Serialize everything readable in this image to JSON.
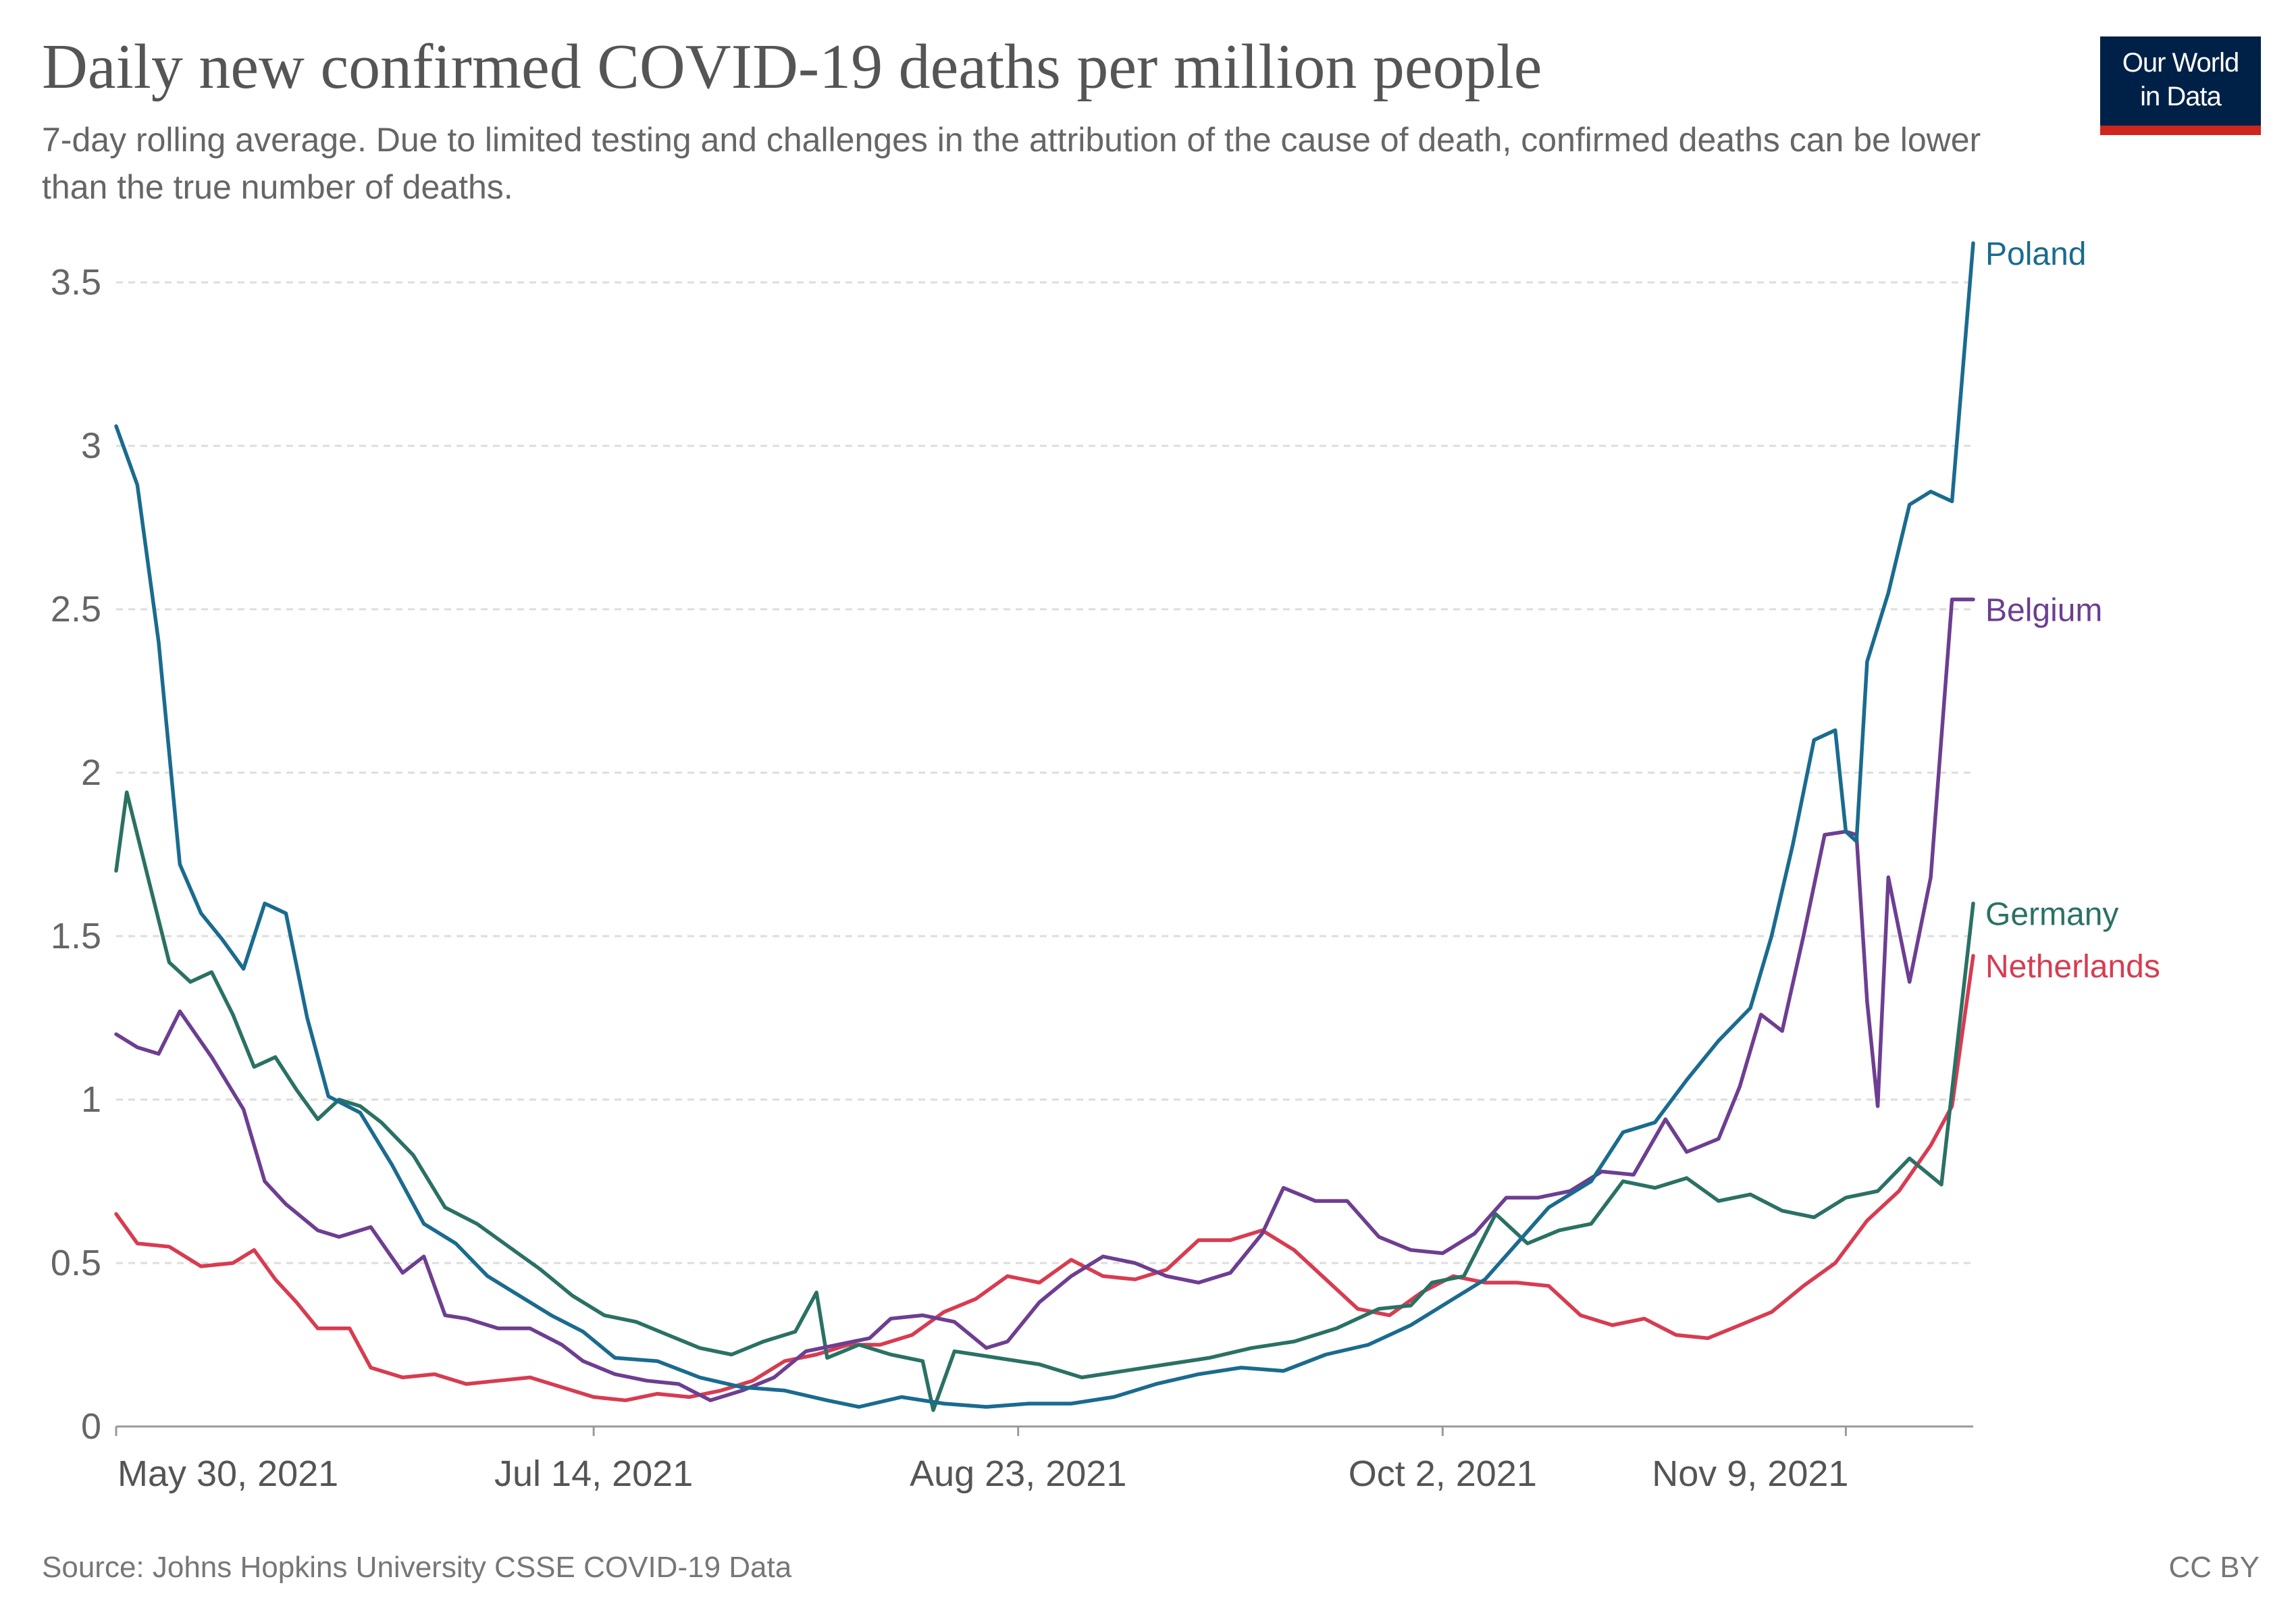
{
  "header": {
    "title": "Daily new confirmed COVID-19 deaths per million people",
    "subtitle": "7-day rolling average. Due to limited testing and challenges in the attribution of the cause of death, confirmed deaths can be lower than the true number of deaths.",
    "logo_line1": "Our World",
    "logo_line2": "in Data"
  },
  "footer": {
    "source": "Source: Johns Hopkins University CSSE COVID-19 Data",
    "license": "CC BY"
  },
  "colors": {
    "Poland": "#1a6b8f",
    "Belgium": "#6d3e91",
    "Germany": "#2a7164",
    "Netherlands": "#d73c50",
    "logo_bg": "#002147",
    "logo_accent": "#ce261e"
  },
  "chart_data": {
    "type": "line",
    "title": "Daily new confirmed COVID-19 deaths per million people",
    "subtitle": "7-day rolling average. Due to limited testing and challenges in the attribution of the cause of death, confirmed deaths can be lower than the true number of deaths.",
    "x_range": [
      "2021-05-30",
      "2021-11-21"
    ],
    "x_ticks": [
      {
        "date": "2021-05-30",
        "label": "May 30, 2021"
      },
      {
        "date": "2021-07-14",
        "label": "Jul 14, 2021"
      },
      {
        "date": "2021-08-23",
        "label": "Aug 23, 2021"
      },
      {
        "date": "2021-10-02",
        "label": "Oct 2, 2021"
      },
      {
        "date": "2021-11-09",
        "label": "Nov 9, 2021"
      }
    ],
    "ylim": [
      0,
      3.5
    ],
    "y_ticks": [
      0,
      0.5,
      1,
      1.5,
      2,
      2.5,
      3,
      3.5
    ],
    "grid": "horizontal dashed",
    "legend": "labels at line ends (right)",
    "series": [
      {
        "name": "Poland",
        "points": [
          [
            "2021-05-30",
            3.06
          ],
          [
            "2021-06-01",
            2.88
          ],
          [
            "2021-06-03",
            2.4
          ],
          [
            "2021-06-05",
            1.72
          ],
          [
            "2021-06-07",
            1.57
          ],
          [
            "2021-06-09",
            1.49
          ],
          [
            "2021-06-11",
            1.4
          ],
          [
            "2021-06-13",
            1.6
          ],
          [
            "2021-06-15",
            1.57
          ],
          [
            "2021-06-17",
            1.25
          ],
          [
            "2021-06-19",
            1.01
          ],
          [
            "2021-06-22",
            0.96
          ],
          [
            "2021-06-25",
            0.8
          ],
          [
            "2021-06-28",
            0.62
          ],
          [
            "2021-07-01",
            0.56
          ],
          [
            "2021-07-04",
            0.46
          ],
          [
            "2021-07-07",
            0.4
          ],
          [
            "2021-07-10",
            0.34
          ],
          [
            "2021-07-13",
            0.29
          ],
          [
            "2021-07-16",
            0.21
          ],
          [
            "2021-07-20",
            0.2
          ],
          [
            "2021-07-24",
            0.15
          ],
          [
            "2021-07-28",
            0.12
          ],
          [
            "2021-08-01",
            0.11
          ],
          [
            "2021-08-05",
            0.08
          ],
          [
            "2021-08-08",
            0.06
          ],
          [
            "2021-08-12",
            0.09
          ],
          [
            "2021-08-16",
            0.07
          ],
          [
            "2021-08-20",
            0.06
          ],
          [
            "2021-08-24",
            0.07
          ],
          [
            "2021-08-28",
            0.07
          ],
          [
            "2021-09-01",
            0.09
          ],
          [
            "2021-09-05",
            0.13
          ],
          [
            "2021-09-09",
            0.16
          ],
          [
            "2021-09-13",
            0.18
          ],
          [
            "2021-09-17",
            0.17
          ],
          [
            "2021-09-21",
            0.22
          ],
          [
            "2021-09-25",
            0.25
          ],
          [
            "2021-09-29",
            0.31
          ],
          [
            "2021-10-03",
            0.39
          ],
          [
            "2021-10-06",
            0.45
          ],
          [
            "2021-10-09",
            0.56
          ],
          [
            "2021-10-12",
            0.67
          ],
          [
            "2021-10-16",
            0.75
          ],
          [
            "2021-10-19",
            0.9
          ],
          [
            "2021-10-22",
            0.93
          ],
          [
            "2021-10-25",
            1.06
          ],
          [
            "2021-10-28",
            1.18
          ],
          [
            "2021-10-31",
            1.28
          ],
          [
            "2021-11-02",
            1.5
          ],
          [
            "2021-11-04",
            1.78
          ],
          [
            "2021-11-06",
            2.1
          ],
          [
            "2021-11-08",
            2.13
          ],
          [
            "2021-11-09",
            1.82
          ],
          [
            "2021-11-10",
            1.79
          ],
          [
            "2021-11-11",
            2.34
          ],
          [
            "2021-11-13",
            2.55
          ],
          [
            "2021-11-15",
            2.82
          ],
          [
            "2021-11-17",
            2.86
          ],
          [
            "2021-11-19",
            2.83
          ],
          [
            "2021-11-21",
            3.62
          ]
        ]
      },
      {
        "name": "Belgium",
        "points": [
          [
            "2021-05-30",
            1.2
          ],
          [
            "2021-06-01",
            1.16
          ],
          [
            "2021-06-03",
            1.14
          ],
          [
            "2021-06-05",
            1.27
          ],
          [
            "2021-06-08",
            1.13
          ],
          [
            "2021-06-11",
            0.97
          ],
          [
            "2021-06-13",
            0.75
          ],
          [
            "2021-06-15",
            0.68
          ],
          [
            "2021-06-18",
            0.6
          ],
          [
            "2021-06-20",
            0.58
          ],
          [
            "2021-06-23",
            0.61
          ],
          [
            "2021-06-26",
            0.47
          ],
          [
            "2021-06-28",
            0.52
          ],
          [
            "2021-06-30",
            0.34
          ],
          [
            "2021-07-02",
            0.33
          ],
          [
            "2021-07-05",
            0.3
          ],
          [
            "2021-07-08",
            0.3
          ],
          [
            "2021-07-11",
            0.25
          ],
          [
            "2021-07-13",
            0.2
          ],
          [
            "2021-07-16",
            0.16
          ],
          [
            "2021-07-19",
            0.14
          ],
          [
            "2021-07-22",
            0.13
          ],
          [
            "2021-07-25",
            0.08
          ],
          [
            "2021-07-28",
            0.11
          ],
          [
            "2021-07-31",
            0.15
          ],
          [
            "2021-08-03",
            0.23
          ],
          [
            "2021-08-06",
            0.25
          ],
          [
            "2021-08-09",
            0.27
          ],
          [
            "2021-08-11",
            0.33
          ],
          [
            "2021-08-14",
            0.34
          ],
          [
            "2021-08-17",
            0.32
          ],
          [
            "2021-08-20",
            0.24
          ],
          [
            "2021-08-22",
            0.26
          ],
          [
            "2021-08-25",
            0.38
          ],
          [
            "2021-08-28",
            0.46
          ],
          [
            "2021-08-31",
            0.52
          ],
          [
            "2021-09-03",
            0.5
          ],
          [
            "2021-09-06",
            0.46
          ],
          [
            "2021-09-09",
            0.44
          ],
          [
            "2021-09-12",
            0.47
          ],
          [
            "2021-09-15",
            0.59
          ],
          [
            "2021-09-17",
            0.73
          ],
          [
            "2021-09-20",
            0.69
          ],
          [
            "2021-09-23",
            0.69
          ],
          [
            "2021-09-26",
            0.58
          ],
          [
            "2021-09-29",
            0.54
          ],
          [
            "2021-10-02",
            0.53
          ],
          [
            "2021-10-05",
            0.59
          ],
          [
            "2021-10-08",
            0.7
          ],
          [
            "2021-10-11",
            0.7
          ],
          [
            "2021-10-14",
            0.72
          ],
          [
            "2021-10-17",
            0.78
          ],
          [
            "2021-10-20",
            0.77
          ],
          [
            "2021-10-23",
            0.94
          ],
          [
            "2021-10-25",
            0.84
          ],
          [
            "2021-10-28",
            0.88
          ],
          [
            "2021-10-30",
            1.04
          ],
          [
            "2021-11-01",
            1.26
          ],
          [
            "2021-11-03",
            1.21
          ],
          [
            "2021-11-05",
            1.5
          ],
          [
            "2021-11-07",
            1.81
          ],
          [
            "2021-11-09",
            1.82
          ],
          [
            "2021-11-10",
            1.81
          ],
          [
            "2021-11-11",
            1.3
          ],
          [
            "2021-11-12",
            0.98
          ],
          [
            "2021-11-13",
            1.68
          ],
          [
            "2021-11-15",
            1.36
          ],
          [
            "2021-11-17",
            1.68
          ],
          [
            "2021-11-19",
            2.53
          ],
          [
            "2021-11-21",
            2.53
          ]
        ]
      },
      {
        "name": "Germany",
        "points": [
          [
            "2021-05-30",
            1.7
          ],
          [
            "2021-05-31",
            1.94
          ],
          [
            "2021-06-02",
            1.68
          ],
          [
            "2021-06-04",
            1.42
          ],
          [
            "2021-06-06",
            1.36
          ],
          [
            "2021-06-08",
            1.39
          ],
          [
            "2021-06-10",
            1.26
          ],
          [
            "2021-06-12",
            1.1
          ],
          [
            "2021-06-14",
            1.13
          ],
          [
            "2021-06-16",
            1.03
          ],
          [
            "2021-06-18",
            0.94
          ],
          [
            "2021-06-20",
            1.0
          ],
          [
            "2021-06-22",
            0.98
          ],
          [
            "2021-06-24",
            0.93
          ],
          [
            "2021-06-27",
            0.83
          ],
          [
            "2021-06-30",
            0.67
          ],
          [
            "2021-07-03",
            0.62
          ],
          [
            "2021-07-06",
            0.55
          ],
          [
            "2021-07-09",
            0.48
          ],
          [
            "2021-07-12",
            0.4
          ],
          [
            "2021-07-15",
            0.34
          ],
          [
            "2021-07-18",
            0.32
          ],
          [
            "2021-07-21",
            0.28
          ],
          [
            "2021-07-24",
            0.24
          ],
          [
            "2021-07-27",
            0.22
          ],
          [
            "2021-07-30",
            0.26
          ],
          [
            "2021-08-02",
            0.29
          ],
          [
            "2021-08-04",
            0.41
          ],
          [
            "2021-08-05",
            0.21
          ],
          [
            "2021-08-08",
            0.25
          ],
          [
            "2021-08-11",
            0.22
          ],
          [
            "2021-08-14",
            0.2
          ],
          [
            "2021-08-15",
            0.05
          ],
          [
            "2021-08-17",
            0.23
          ],
          [
            "2021-08-21",
            0.21
          ],
          [
            "2021-08-25",
            0.19
          ],
          [
            "2021-08-29",
            0.15
          ],
          [
            "2021-09-02",
            0.17
          ],
          [
            "2021-09-06",
            0.19
          ],
          [
            "2021-09-10",
            0.21
          ],
          [
            "2021-09-14",
            0.24
          ],
          [
            "2021-09-18",
            0.26
          ],
          [
            "2021-09-22",
            0.3
          ],
          [
            "2021-09-26",
            0.36
          ],
          [
            "2021-09-29",
            0.37
          ],
          [
            "2021-10-01",
            0.44
          ],
          [
            "2021-10-04",
            0.46
          ],
          [
            "2021-10-07",
            0.65
          ],
          [
            "2021-10-10",
            0.56
          ],
          [
            "2021-10-13",
            0.6
          ],
          [
            "2021-10-16",
            0.62
          ],
          [
            "2021-10-19",
            0.75
          ],
          [
            "2021-10-22",
            0.73
          ],
          [
            "2021-10-25",
            0.76
          ],
          [
            "2021-10-28",
            0.69
          ],
          [
            "2021-10-31",
            0.71
          ],
          [
            "2021-11-03",
            0.66
          ],
          [
            "2021-11-06",
            0.64
          ],
          [
            "2021-11-09",
            0.7
          ],
          [
            "2021-11-12",
            0.72
          ],
          [
            "2021-11-15",
            0.82
          ],
          [
            "2021-11-18",
            0.74
          ],
          [
            "2021-11-21",
            1.6
          ]
        ]
      },
      {
        "name": "Netherlands",
        "points": [
          [
            "2021-05-30",
            0.65
          ],
          [
            "2021-06-01",
            0.56
          ],
          [
            "2021-06-04",
            0.55
          ],
          [
            "2021-06-07",
            0.49
          ],
          [
            "2021-06-10",
            0.5
          ],
          [
            "2021-06-12",
            0.54
          ],
          [
            "2021-06-14",
            0.45
          ],
          [
            "2021-06-16",
            0.38
          ],
          [
            "2021-06-18",
            0.3
          ],
          [
            "2021-06-21",
            0.3
          ],
          [
            "2021-06-23",
            0.18
          ],
          [
            "2021-06-26",
            0.15
          ],
          [
            "2021-06-29",
            0.16
          ],
          [
            "2021-07-02",
            0.13
          ],
          [
            "2021-07-05",
            0.14
          ],
          [
            "2021-07-08",
            0.15
          ],
          [
            "2021-07-11",
            0.12
          ],
          [
            "2021-07-14",
            0.09
          ],
          [
            "2021-07-17",
            0.08
          ],
          [
            "2021-07-20",
            0.1
          ],
          [
            "2021-07-23",
            0.09
          ],
          [
            "2021-07-26",
            0.11
          ],
          [
            "2021-07-29",
            0.14
          ],
          [
            "2021-08-01",
            0.2
          ],
          [
            "2021-08-04",
            0.22
          ],
          [
            "2021-08-07",
            0.25
          ],
          [
            "2021-08-10",
            0.25
          ],
          [
            "2021-08-13",
            0.28
          ],
          [
            "2021-08-16",
            0.35
          ],
          [
            "2021-08-19",
            0.39
          ],
          [
            "2021-08-22",
            0.46
          ],
          [
            "2021-08-25",
            0.44
          ],
          [
            "2021-08-28",
            0.51
          ],
          [
            "2021-08-31",
            0.46
          ],
          [
            "2021-09-03",
            0.45
          ],
          [
            "2021-09-06",
            0.48
          ],
          [
            "2021-09-09",
            0.57
          ],
          [
            "2021-09-12",
            0.57
          ],
          [
            "2021-09-15",
            0.6
          ],
          [
            "2021-09-18",
            0.54
          ],
          [
            "2021-09-21",
            0.45
          ],
          [
            "2021-09-24",
            0.36
          ],
          [
            "2021-09-27",
            0.34
          ],
          [
            "2021-09-30",
            0.41
          ],
          [
            "2021-10-03",
            0.46
          ],
          [
            "2021-10-06",
            0.44
          ],
          [
            "2021-10-09",
            0.44
          ],
          [
            "2021-10-12",
            0.43
          ],
          [
            "2021-10-15",
            0.34
          ],
          [
            "2021-10-18",
            0.31
          ],
          [
            "2021-10-21",
            0.33
          ],
          [
            "2021-10-24",
            0.28
          ],
          [
            "2021-10-27",
            0.27
          ],
          [
            "2021-10-30",
            0.31
          ],
          [
            "2021-11-02",
            0.35
          ],
          [
            "2021-11-05",
            0.43
          ],
          [
            "2021-11-08",
            0.5
          ],
          [
            "2021-11-11",
            0.63
          ],
          [
            "2021-11-14",
            0.72
          ],
          [
            "2021-11-17",
            0.86
          ],
          [
            "2021-11-19",
            0.98
          ],
          [
            "2021-11-21",
            1.44
          ]
        ]
      }
    ]
  }
}
